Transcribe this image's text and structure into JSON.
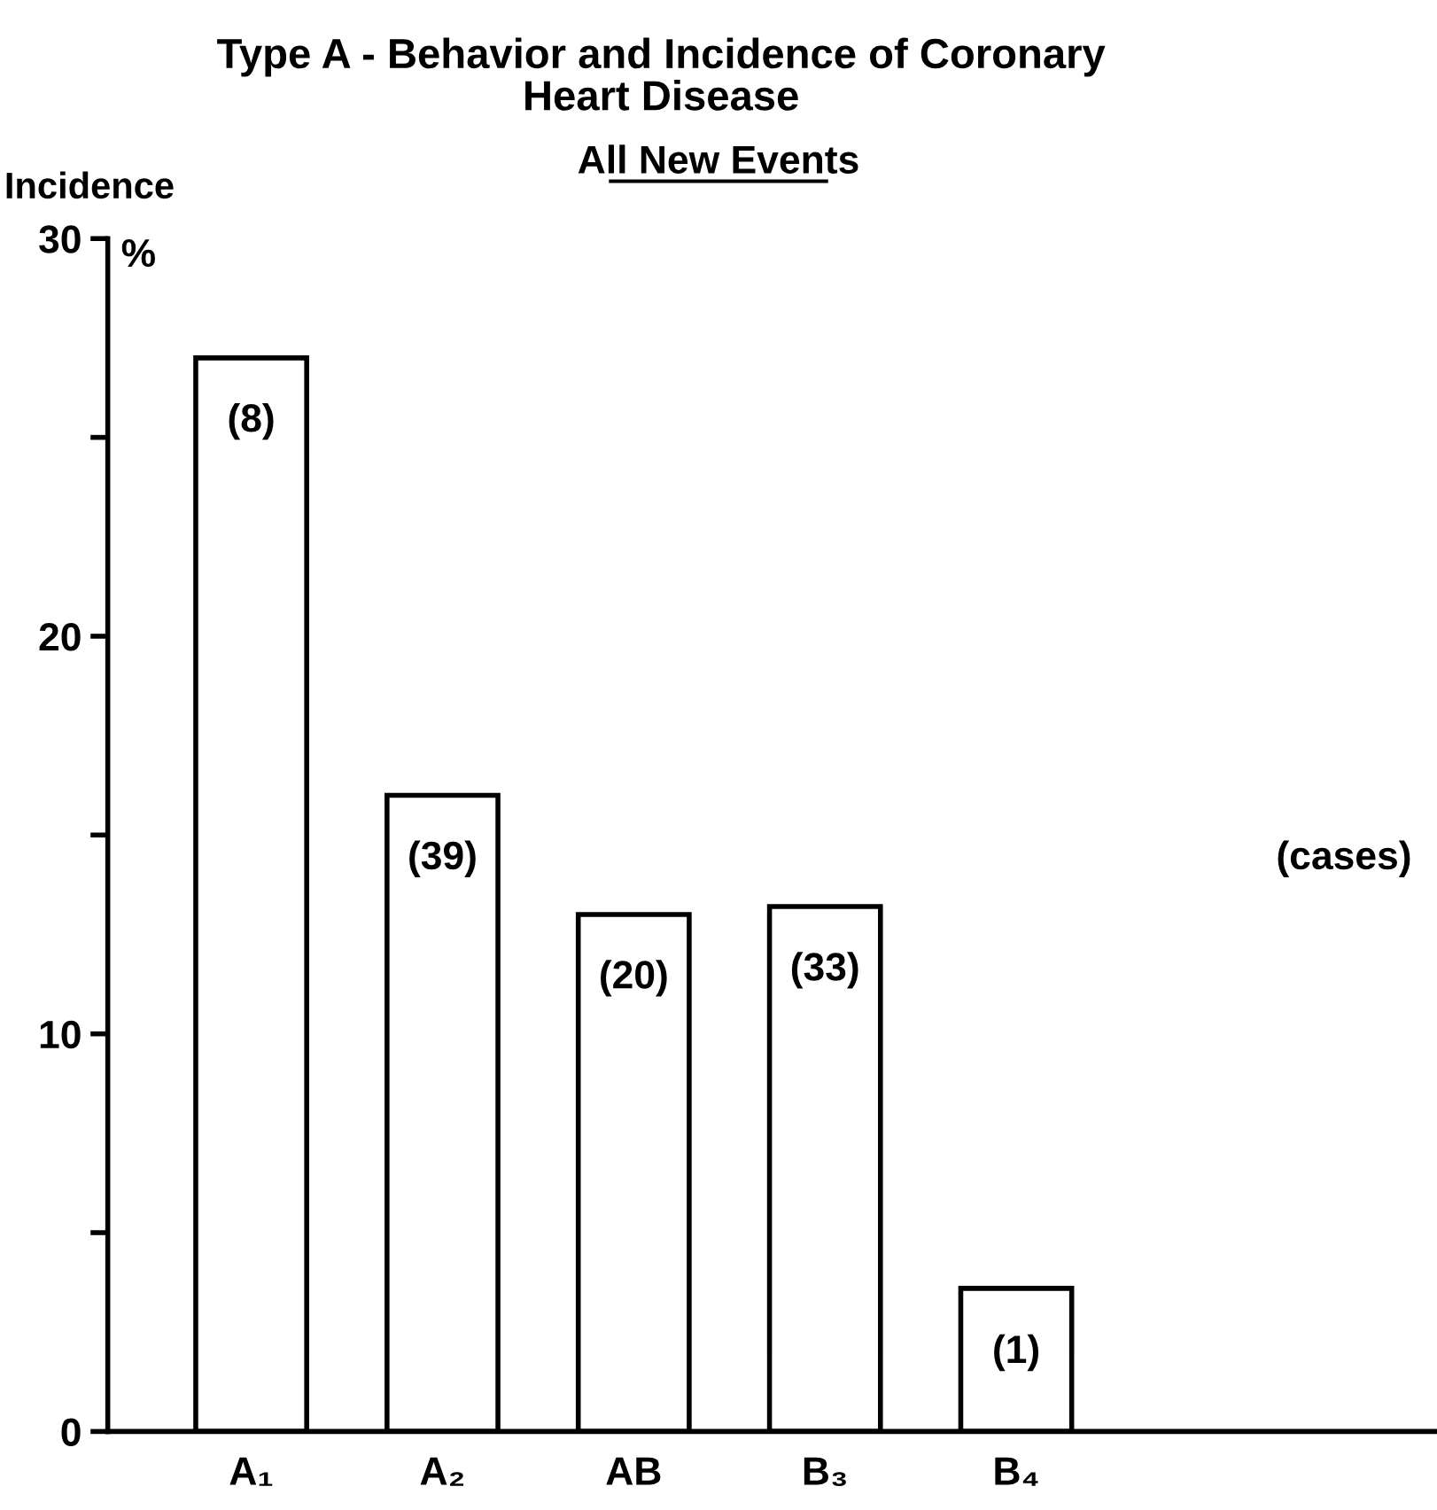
{
  "chart_data": {
    "type": "bar",
    "title": "Type A - Behavior and Incidence of Coronary\nHeart Disease",
    "subtitle": "All New Events",
    "ylabel": "Incidence",
    "categories": [
      "A₁",
      "A₂",
      "AB",
      "B₃",
      "B₄"
    ],
    "values": [
      27,
      16,
      13,
      13.2,
      3.6
    ],
    "color": "#ffffff",
    "ylim": [
      0,
      30
    ],
    "yticks": [
      0,
      10,
      20,
      30
    ],
    "annotations": [
      "(8)",
      "(39)",
      "(20)",
      "(33)",
      "(1)",
      "%",
      "(cases)"
    ],
    "grid": false,
    "legend": false
  }
}
